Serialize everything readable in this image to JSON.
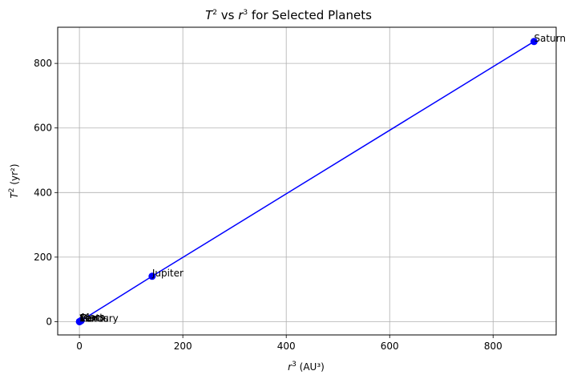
{
  "chart_data": {
    "type": "line",
    "title": {
      "base1": "T",
      "sup1": "2",
      "mid": " vs ",
      "base2": "r",
      "sup2": "3",
      "rest": " for Selected Planets"
    },
    "xlabel": {
      "base": "r",
      "sup": "3",
      "rest": " (AU³)"
    },
    "ylabel": {
      "base": "T",
      "sup": "2",
      "rest": " (yr²)"
    },
    "xlim": [
      -42,
      922
    ],
    "ylim": [
      -41,
      912
    ],
    "xticks": [
      0,
      200,
      400,
      600,
      800
    ],
    "yticks": [
      0,
      200,
      400,
      600,
      800
    ],
    "grid": true,
    "series": [
      {
        "color": "#0000ff",
        "marker": "circle",
        "points": [
          {
            "label": "Mercury",
            "x": 0.058,
            "y": 0.058
          },
          {
            "label": "Venus",
            "x": 0.379,
            "y": 0.379
          },
          {
            "label": "Earth",
            "x": 1.0,
            "y": 1.0
          },
          {
            "label": "Mars",
            "x": 3.54,
            "y": 3.54
          },
          {
            "label": "Jupiter",
            "x": 140.6,
            "y": 140.7
          },
          {
            "label": "Saturn",
            "x": 879.2,
            "y": 867.8
          }
        ]
      }
    ]
  }
}
